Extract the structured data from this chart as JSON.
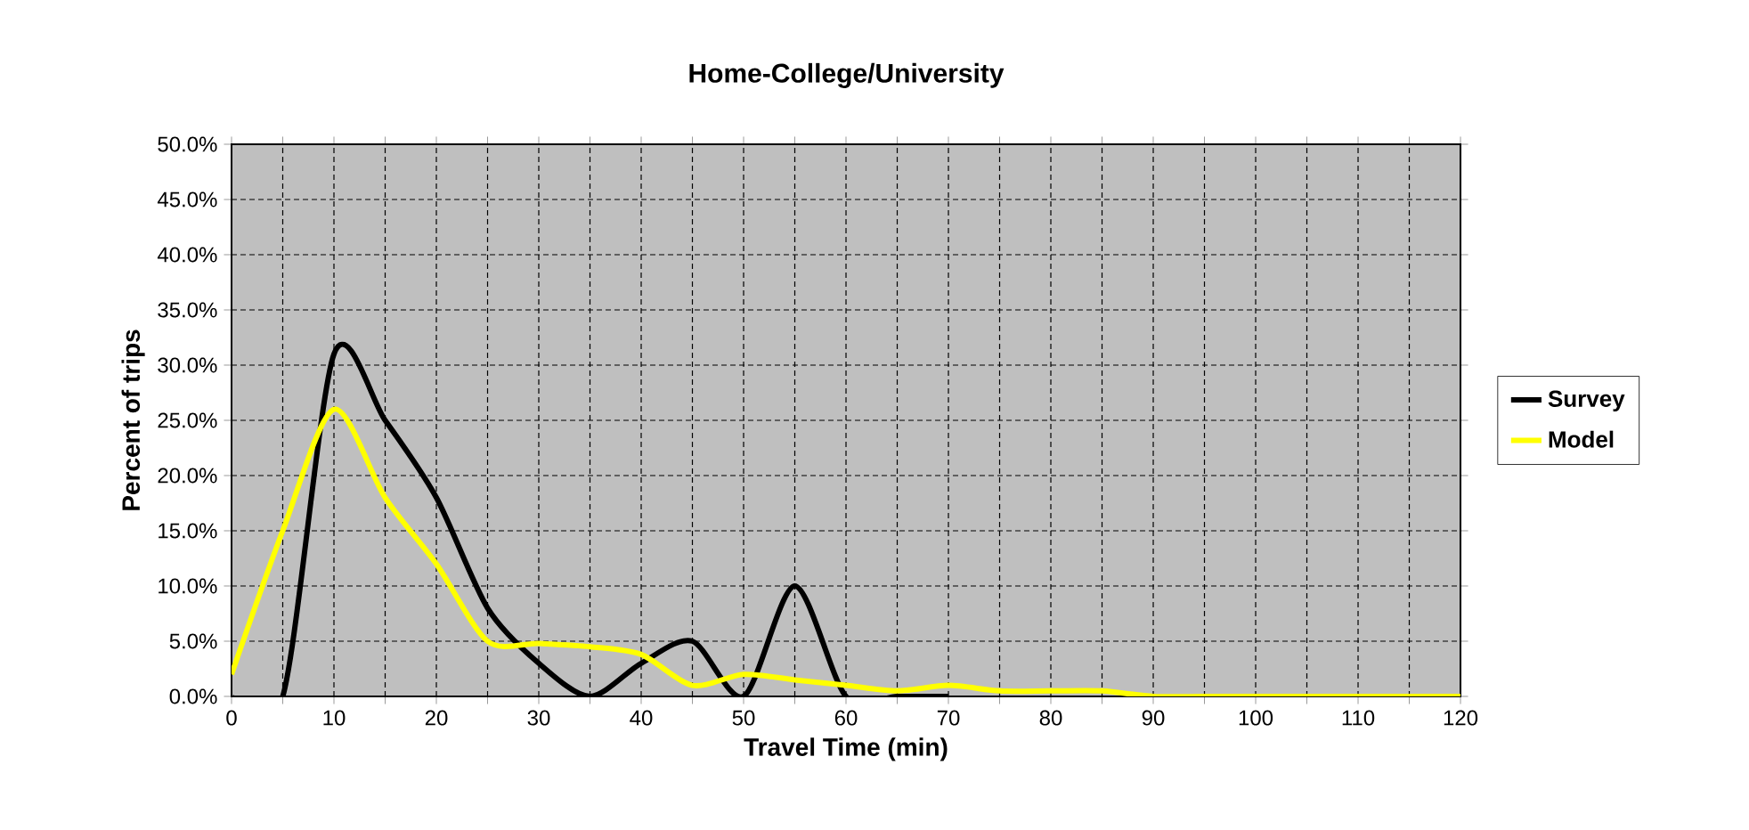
{
  "chart_data": {
    "type": "line",
    "title": "Home-College/University",
    "xlabel": "Travel Time (min)",
    "ylabel": "Percent of trips",
    "x": [
      0,
      5,
      10,
      15,
      20,
      25,
      30,
      35,
      40,
      45,
      50,
      55,
      60,
      65,
      70,
      75,
      80,
      85,
      90,
      95,
      100,
      105,
      110,
      115,
      120
    ],
    "series": [
      {
        "name": "Survey",
        "color": "#000000",
        "values": [
          0,
          0,
          31,
          25,
          18,
          8,
          3,
          0,
          3,
          5,
          0,
          10,
          0,
          0,
          0,
          null,
          null,
          null,
          null,
          null,
          null,
          null,
          null,
          null,
          null
        ]
      },
      {
        "name": "Model",
        "color": "#ffff00",
        "values": [
          2,
          15,
          26,
          18,
          12,
          5,
          4.8,
          4.5,
          3.8,
          1,
          2,
          1.5,
          1,
          0.5,
          1,
          0.5,
          0.5,
          0.5,
          0,
          0,
          0,
          0,
          0,
          0,
          0
        ]
      }
    ],
    "xlim": [
      0,
      120
    ],
    "xticks": [
      0,
      {
        "value": 5,
        "label": null
      },
      10,
      {
        "value": 15,
        "label": null
      },
      20,
      {
        "value": 25,
        "label": null
      },
      30,
      {
        "value": 35,
        "label": null
      },
      40,
      {
        "value": 45,
        "label": null
      },
      50,
      {
        "value": 55,
        "label": null
      },
      60,
      {
        "value": 65,
        "label": null
      },
      70,
      {
        "value": 75,
        "label": null
      },
      80,
      {
        "value": 85,
        "label": null
      },
      90,
      {
        "value": 95,
        "label": null
      },
      100,
      {
        "value": 105,
        "label": null
      },
      110,
      {
        "value": 115,
        "label": null
      },
      120
    ],
    "ylim": [
      0,
      50
    ],
    "yticks": [
      {
        "value": 0,
        "label": "0.0%"
      },
      {
        "value": 5,
        "label": "5.0%"
      },
      {
        "value": 10,
        "label": "10.0%"
      },
      {
        "value": 15,
        "label": "15.0%"
      },
      {
        "value": 20,
        "label": "20.0%"
      },
      {
        "value": 25,
        "label": "25.0%"
      },
      {
        "value": 30,
        "label": "30.0%"
      },
      {
        "value": 35,
        "label": "35.0%"
      },
      {
        "value": 40,
        "label": "40.0%"
      },
      {
        "value": 45,
        "label": "45.0%"
      },
      {
        "value": 50,
        "label": "50.0%"
      }
    ],
    "grid": true,
    "legend": "right",
    "marker": "none",
    "line_style": "solid"
  }
}
